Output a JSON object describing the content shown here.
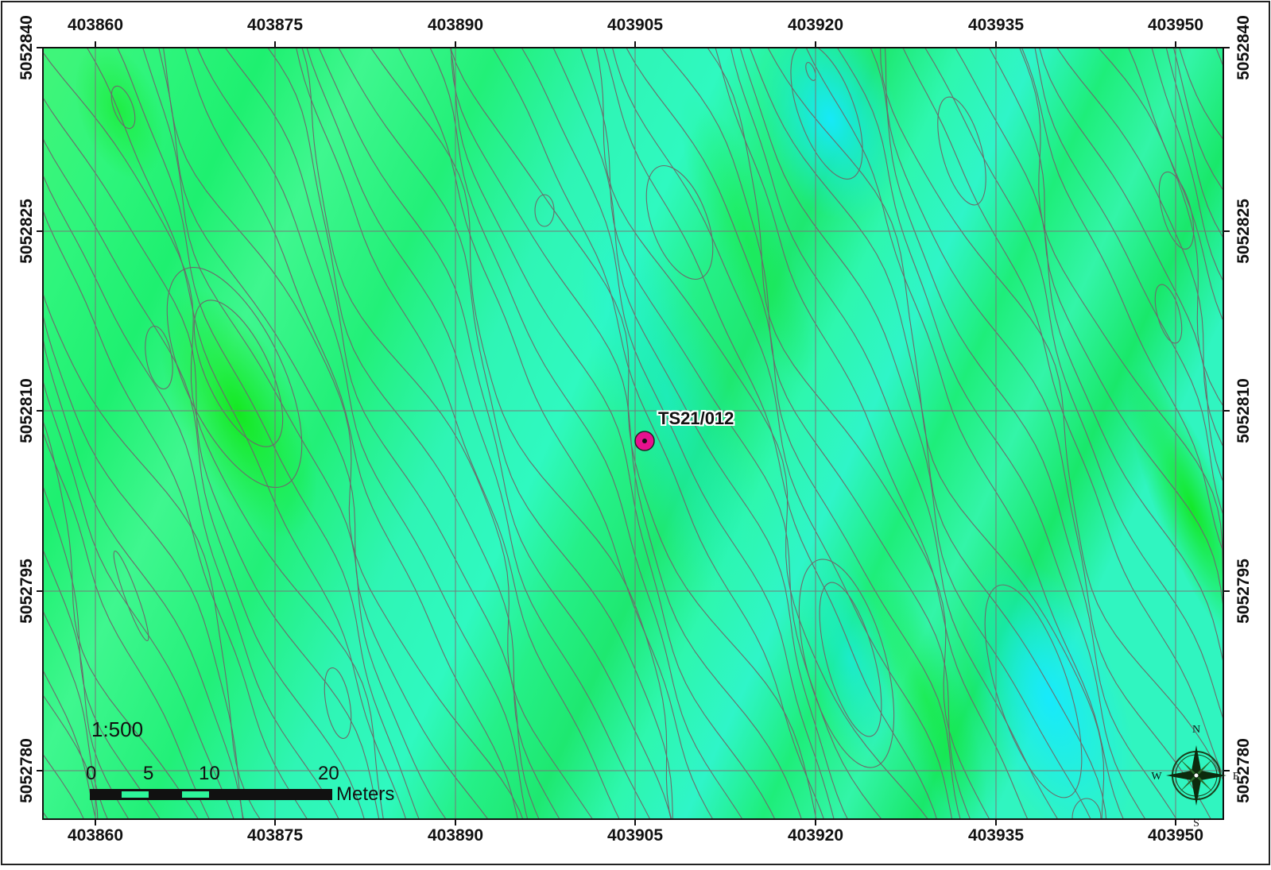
{
  "map": {
    "top_ticks": [
      "403860",
      "403875",
      "403890",
      "403905",
      "403920",
      "403935",
      "403950"
    ],
    "bottom_ticks": [
      "403860",
      "403875",
      "403890",
      "403905",
      "403920",
      "403935",
      "403950"
    ],
    "left_ticks": [
      "5052840",
      "5052825",
      "5052810",
      "5052795",
      "5052780"
    ],
    "right_ticks": [
      "5052840",
      "5052825",
      "5052810",
      "5052795",
      "5052780"
    ],
    "point_label": "TS21/012",
    "point_color": "#e8118f",
    "fill_color": "#2ef59a",
    "contour_color": "#6b6b6b"
  },
  "scale": {
    "ratio": "1:500",
    "labels": [
      "0",
      "5",
      "10",
      "20"
    ],
    "unit": "Meters"
  },
  "compass": {
    "n": "N",
    "s": "S",
    "e": "E",
    "w": "W"
  }
}
